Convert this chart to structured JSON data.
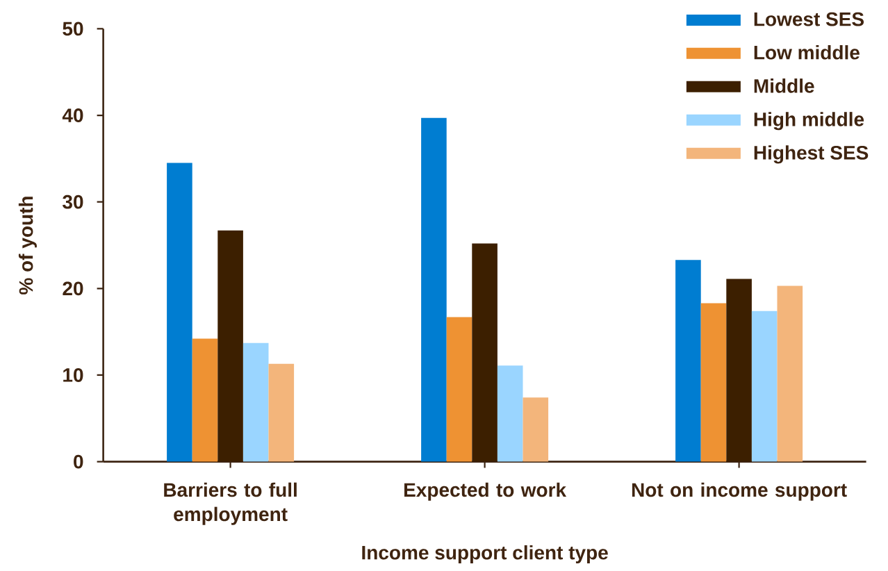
{
  "chart_data": {
    "type": "bar",
    "xlabel": "Income support client type",
    "ylabel": "% of youth",
    "categories": [
      "Barriers to full employment",
      "Expected to work",
      "Not on income support"
    ],
    "series": [
      {
        "name": "Lowest SES",
        "color": "#007dd1",
        "values": [
          34.5,
          39.7,
          23.3
        ]
      },
      {
        "name": "Low middle",
        "color": "#ee9233",
        "values": [
          14.2,
          16.7,
          18.3
        ]
      },
      {
        "name": "Middle",
        "color": "#3c1f00",
        "values": [
          26.7,
          25.2,
          21.1
        ]
      },
      {
        "name": "High middle",
        "color": "#9ad5ff",
        "values": [
          13.7,
          11.1,
          17.4
        ]
      },
      {
        "name": "Highest SES",
        "color": "#f3b57b",
        "values": [
          11.3,
          7.4,
          20.3
        ]
      }
    ],
    "ylim": [
      0,
      50
    ],
    "yticks": [
      0,
      10,
      20,
      30,
      40,
      50
    ],
    "legend": "top right"
  }
}
